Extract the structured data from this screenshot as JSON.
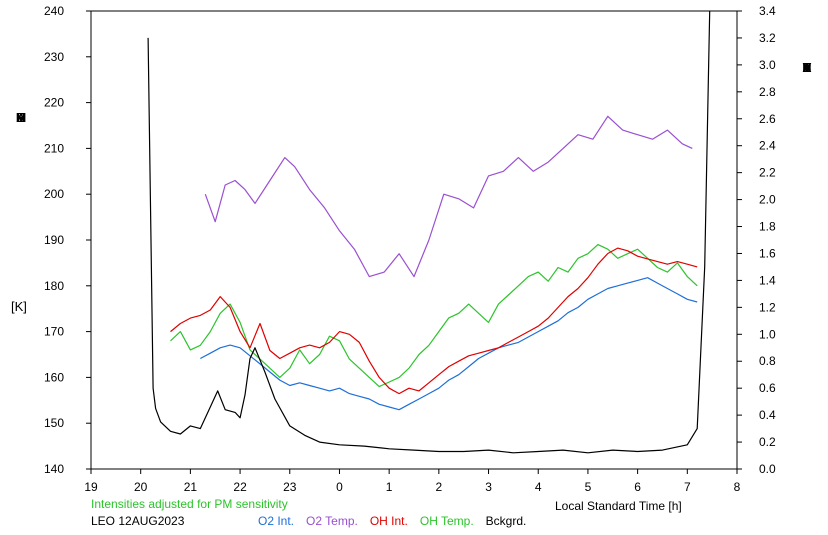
{
  "chart_data": {
    "type": "line",
    "xlabel": "Local Standard Time [h]",
    "x_ticks": [
      "19",
      "20",
      "21",
      "22",
      "23",
      "0",
      "1",
      "2",
      "3",
      "4",
      "5",
      "6",
      "7",
      "8"
    ],
    "xlim": [
      19,
      32
    ],
    "y_left": {
      "label_letters": [
        "T",
        "E",
        "M",
        "P",
        "E",
        "R",
        "A",
        "T",
        "U",
        "R",
        "E"
      ],
      "unit": "[K]",
      "ticks": [
        "140",
        "150",
        "160",
        "170",
        "180",
        "190",
        "200",
        "210",
        "220",
        "230",
        "240"
      ],
      "ylim": [
        140,
        240
      ]
    },
    "y_right": {
      "label_letters": [
        "R",
        "E",
        "L",
        "A",
        "T",
        "I",
        "V",
        "E",
        "",
        "I",
        "N",
        "T",
        "E",
        "N",
        "S",
        "I",
        "T",
        "Y"
      ],
      "ticks": [
        "0.0",
        "0.2",
        "0.4",
        "0.6",
        "0.8",
        "1.0",
        "1.2",
        "1.4",
        "1.6",
        "1.8",
        "2.0",
        "2.2",
        "2.4",
        "2.6",
        "2.8",
        "3.0",
        "3.2",
        "3.4"
      ],
      "ylim": [
        0,
        3.4
      ]
    },
    "note": "Intensities adjusted for PM sensitivity",
    "station": "LEO 12AUG2023",
    "legend": [
      {
        "label": "O2 Int.",
        "color": "#1e6fd9"
      },
      {
        "label": "O2 Temp.",
        "color": "#9a4fd1"
      },
      {
        "label": "OH Int.",
        "color": "#e00000"
      },
      {
        "label": "OH Temp.",
        "color": "#2bc42b"
      },
      {
        "label": "Bckgrd.",
        "color": "#000000"
      }
    ],
    "series": [
      {
        "name": "O2 Temp.",
        "axis": "left",
        "color": "#9a4fd1",
        "x": [
          21.3,
          21.5,
          21.7,
          21.9,
          22.1,
          22.3,
          22.6,
          22.9,
          23.1,
          23.4,
          23.7,
          24.0,
          24.3,
          24.6,
          24.9,
          25.2,
          25.5,
          25.8,
          26.1,
          26.4,
          26.7,
          27.0,
          27.3,
          27.6,
          27.9,
          28.2,
          28.5,
          28.8,
          29.1,
          29.4,
          29.7,
          30.0,
          30.3,
          30.6,
          30.9,
          31.1
        ],
        "y": [
          200,
          194,
          202,
          203,
          201,
          198,
          203,
          208,
          206,
          201,
          197,
          192,
          188,
          182,
          183,
          187,
          182,
          190,
          200,
          199,
          197,
          204,
          205,
          208,
          205,
          207,
          210,
          213,
          212,
          217,
          214,
          213,
          212,
          214,
          211,
          210
        ]
      },
      {
        "name": "OH Temp.",
        "axis": "left",
        "color": "#2bc42b",
        "x": [
          20.6,
          20.8,
          21.0,
          21.2,
          21.4,
          21.6,
          21.8,
          22.0,
          22.2,
          22.4,
          22.6,
          22.8,
          23.0,
          23.2,
          23.4,
          23.6,
          23.8,
          24.0,
          24.2,
          24.4,
          24.6,
          24.8,
          25.0,
          25.2,
          25.4,
          25.6,
          25.8,
          26.0,
          26.2,
          26.4,
          26.6,
          26.8,
          27.0,
          27.2,
          27.4,
          27.6,
          27.8,
          28.0,
          28.2,
          28.4,
          28.6,
          28.8,
          29.0,
          29.2,
          29.4,
          29.6,
          29.8,
          30.0,
          30.2,
          30.4,
          30.6,
          30.8,
          31.0,
          31.2
        ],
        "y": [
          168,
          170,
          166,
          167,
          170,
          174,
          176,
          172,
          166,
          164,
          162,
          160,
          162,
          166,
          163,
          165,
          169,
          168,
          164,
          162,
          160,
          158,
          159,
          160,
          162,
          165,
          167,
          170,
          173,
          174,
          176,
          174,
          172,
          176,
          178,
          180,
          182,
          183,
          181,
          184,
          183,
          186,
          187,
          189,
          188,
          186,
          187,
          188,
          186,
          184,
          183,
          185,
          182,
          180
        ]
      },
      {
        "name": "O2 Int.",
        "axis": "right",
        "color": "#1e6fd9",
        "x": [
          21.2,
          21.4,
          21.6,
          21.8,
          22.0,
          22.2,
          22.4,
          22.6,
          22.8,
          23.0,
          23.2,
          23.4,
          23.6,
          23.8,
          24.0,
          24.2,
          24.4,
          24.6,
          24.8,
          25.0,
          25.2,
          25.4,
          25.6,
          25.8,
          26.0,
          26.2,
          26.4,
          26.6,
          26.8,
          27.0,
          27.2,
          27.4,
          27.6,
          27.8,
          28.0,
          28.2,
          28.4,
          28.6,
          28.8,
          29.0,
          29.2,
          29.4,
          29.6,
          29.8,
          30.0,
          30.2,
          30.4,
          30.6,
          30.8,
          31.0,
          31.2
        ],
        "y": [
          0.82,
          0.86,
          0.9,
          0.92,
          0.9,
          0.84,
          0.78,
          0.72,
          0.66,
          0.62,
          0.64,
          0.62,
          0.6,
          0.58,
          0.6,
          0.56,
          0.54,
          0.52,
          0.48,
          0.46,
          0.44,
          0.48,
          0.52,
          0.56,
          0.6,
          0.66,
          0.7,
          0.76,
          0.82,
          0.86,
          0.9,
          0.92,
          0.94,
          0.98,
          1.02,
          1.06,
          1.1,
          1.16,
          1.2,
          1.26,
          1.3,
          1.34,
          1.36,
          1.38,
          1.4,
          1.42,
          1.38,
          1.34,
          1.3,
          1.26,
          1.24
        ]
      },
      {
        "name": "OH Int.",
        "axis": "right",
        "color": "#e00000",
        "x": [
          20.6,
          20.8,
          21.0,
          21.2,
          21.4,
          21.6,
          21.8,
          22.0,
          22.2,
          22.4,
          22.6,
          22.8,
          23.0,
          23.2,
          23.4,
          23.6,
          23.8,
          24.0,
          24.2,
          24.4,
          24.6,
          24.8,
          25.0,
          25.2,
          25.4,
          25.6,
          25.8,
          26.0,
          26.2,
          26.4,
          26.6,
          26.8,
          27.0,
          27.2,
          27.4,
          27.6,
          27.8,
          28.0,
          28.2,
          28.4,
          28.6,
          28.8,
          29.0,
          29.2,
          29.4,
          29.6,
          29.8,
          30.0,
          30.2,
          30.4,
          30.6,
          30.8,
          31.0,
          31.2
        ],
        "y": [
          1.02,
          1.08,
          1.12,
          1.14,
          1.18,
          1.28,
          1.2,
          1.02,
          0.9,
          1.08,
          0.88,
          0.82,
          0.86,
          0.9,
          0.92,
          0.9,
          0.94,
          1.02,
          1.0,
          0.94,
          0.8,
          0.68,
          0.6,
          0.56,
          0.6,
          0.58,
          0.64,
          0.7,
          0.76,
          0.8,
          0.84,
          0.86,
          0.88,
          0.9,
          0.94,
          0.98,
          1.02,
          1.06,
          1.12,
          1.2,
          1.28,
          1.34,
          1.42,
          1.52,
          1.6,
          1.64,
          1.62,
          1.58,
          1.56,
          1.54,
          1.52,
          1.54,
          1.52,
          1.5
        ]
      },
      {
        "name": "Bckgrd.",
        "axis": "right",
        "color": "#000000",
        "x": [
          20.15,
          20.25,
          20.3,
          20.4,
          20.6,
          20.8,
          21.0,
          21.2,
          21.4,
          21.55,
          21.7,
          21.9,
          22.0,
          22.1,
          22.2,
          22.3,
          22.5,
          22.7,
          23.0,
          23.3,
          23.6,
          24.0,
          24.5,
          25.0,
          25.5,
          26.0,
          26.5,
          27.0,
          27.5,
          28.0,
          28.5,
          29.0,
          29.5,
          30.0,
          30.5,
          31.0,
          31.2,
          31.35,
          31.45
        ],
        "y": [
          3.2,
          0.6,
          0.45,
          0.35,
          0.28,
          0.26,
          0.32,
          0.3,
          0.46,
          0.58,
          0.44,
          0.42,
          0.38,
          0.55,
          0.82,
          0.9,
          0.72,
          0.52,
          0.32,
          0.25,
          0.2,
          0.18,
          0.17,
          0.15,
          0.14,
          0.13,
          0.13,
          0.14,
          0.12,
          0.13,
          0.14,
          0.12,
          0.14,
          0.13,
          0.14,
          0.18,
          0.3,
          1.5,
          3.4
        ]
      }
    ]
  }
}
